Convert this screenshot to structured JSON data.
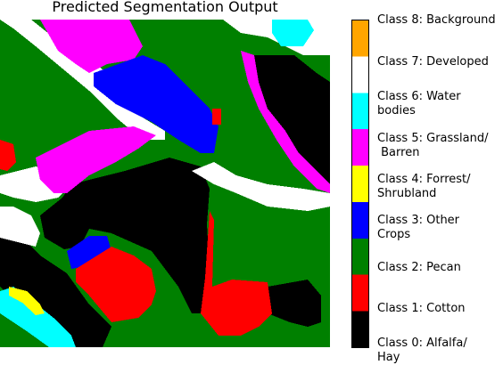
{
  "title": "Predicted Segmentation Output",
  "colorbar": {
    "classes": [
      {
        "label": "Class 0: Alfalfa/\nHay",
        "color": "#000000"
      },
      {
        "label": "Class 1: Cotton",
        "color": "#ff0000"
      },
      {
        "label": "Class 2: Pecan",
        "color": "#008000"
      },
      {
        "label": "Class 3: Other\nCrops",
        "color": "#0000ff"
      },
      {
        "label": "Class 4: Forrest/\nShrubland",
        "color": "#ffff00"
      },
      {
        "label": "Class 5: Grassland/\n Barren",
        "color": "#ff00ff"
      },
      {
        "label": "Class 6: Water\nbodies",
        "color": "#00ffff"
      },
      {
        "label": "Class 7: Developed",
        "color": "#ffffff"
      },
      {
        "label": "Class 8: Background",
        "color": "#ffa500"
      }
    ]
  }
}
